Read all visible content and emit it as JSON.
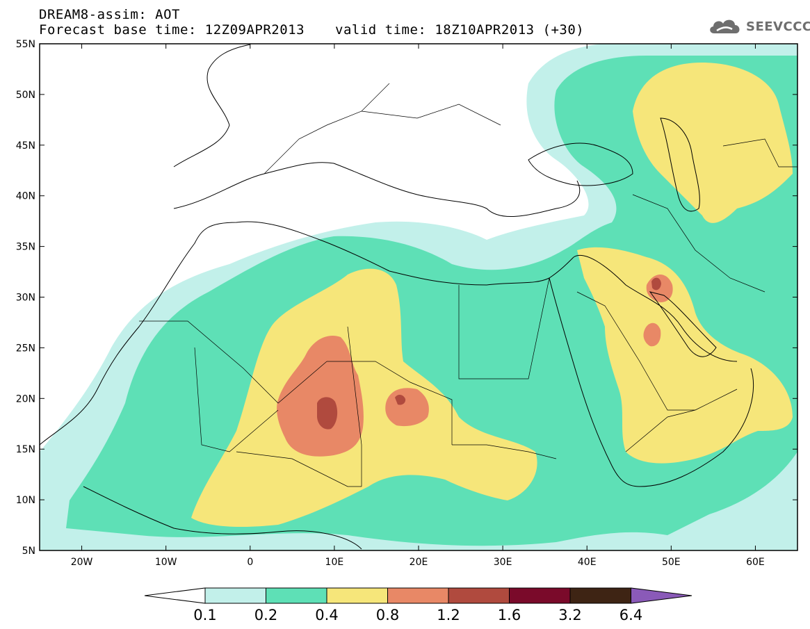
{
  "header": {
    "title": "DREAM8-assim: AOT",
    "base_time": "Forecast base time: 12Z09APR2013",
    "valid_time": "valid time: 18Z10APR2013 (+30)"
  },
  "logo": {
    "icon": "cloud-icon",
    "text": "SEEVCCC",
    "color": "#6e6e6e"
  },
  "map": {
    "projection": "lat-lon",
    "lon_range": [
      -25,
      65
    ],
    "lat_range": [
      5,
      55
    ],
    "lat_labels": [
      "55N",
      "50N",
      "45N",
      "40N",
      "35N",
      "30N",
      "25N",
      "20N",
      "15N",
      "10N",
      "5N"
    ],
    "lon_labels": [
      "20W",
      "10W",
      "0",
      "10E",
      "20E",
      "30E",
      "40E",
      "50E",
      "60E"
    ],
    "field": "AOT"
  },
  "colorbar": {
    "levels": [
      "0.1",
      "0.2",
      "0.4",
      "0.8",
      "1.2",
      "1.6",
      "3.2",
      "6.4"
    ],
    "colors": [
      "#ffffff",
      "#c2f0ea",
      "#5ee0b6",
      "#f6e67a",
      "#e88866",
      "#b04a3e",
      "#7a0a2a",
      "#3e2414",
      "#8a5ab8"
    ]
  }
}
